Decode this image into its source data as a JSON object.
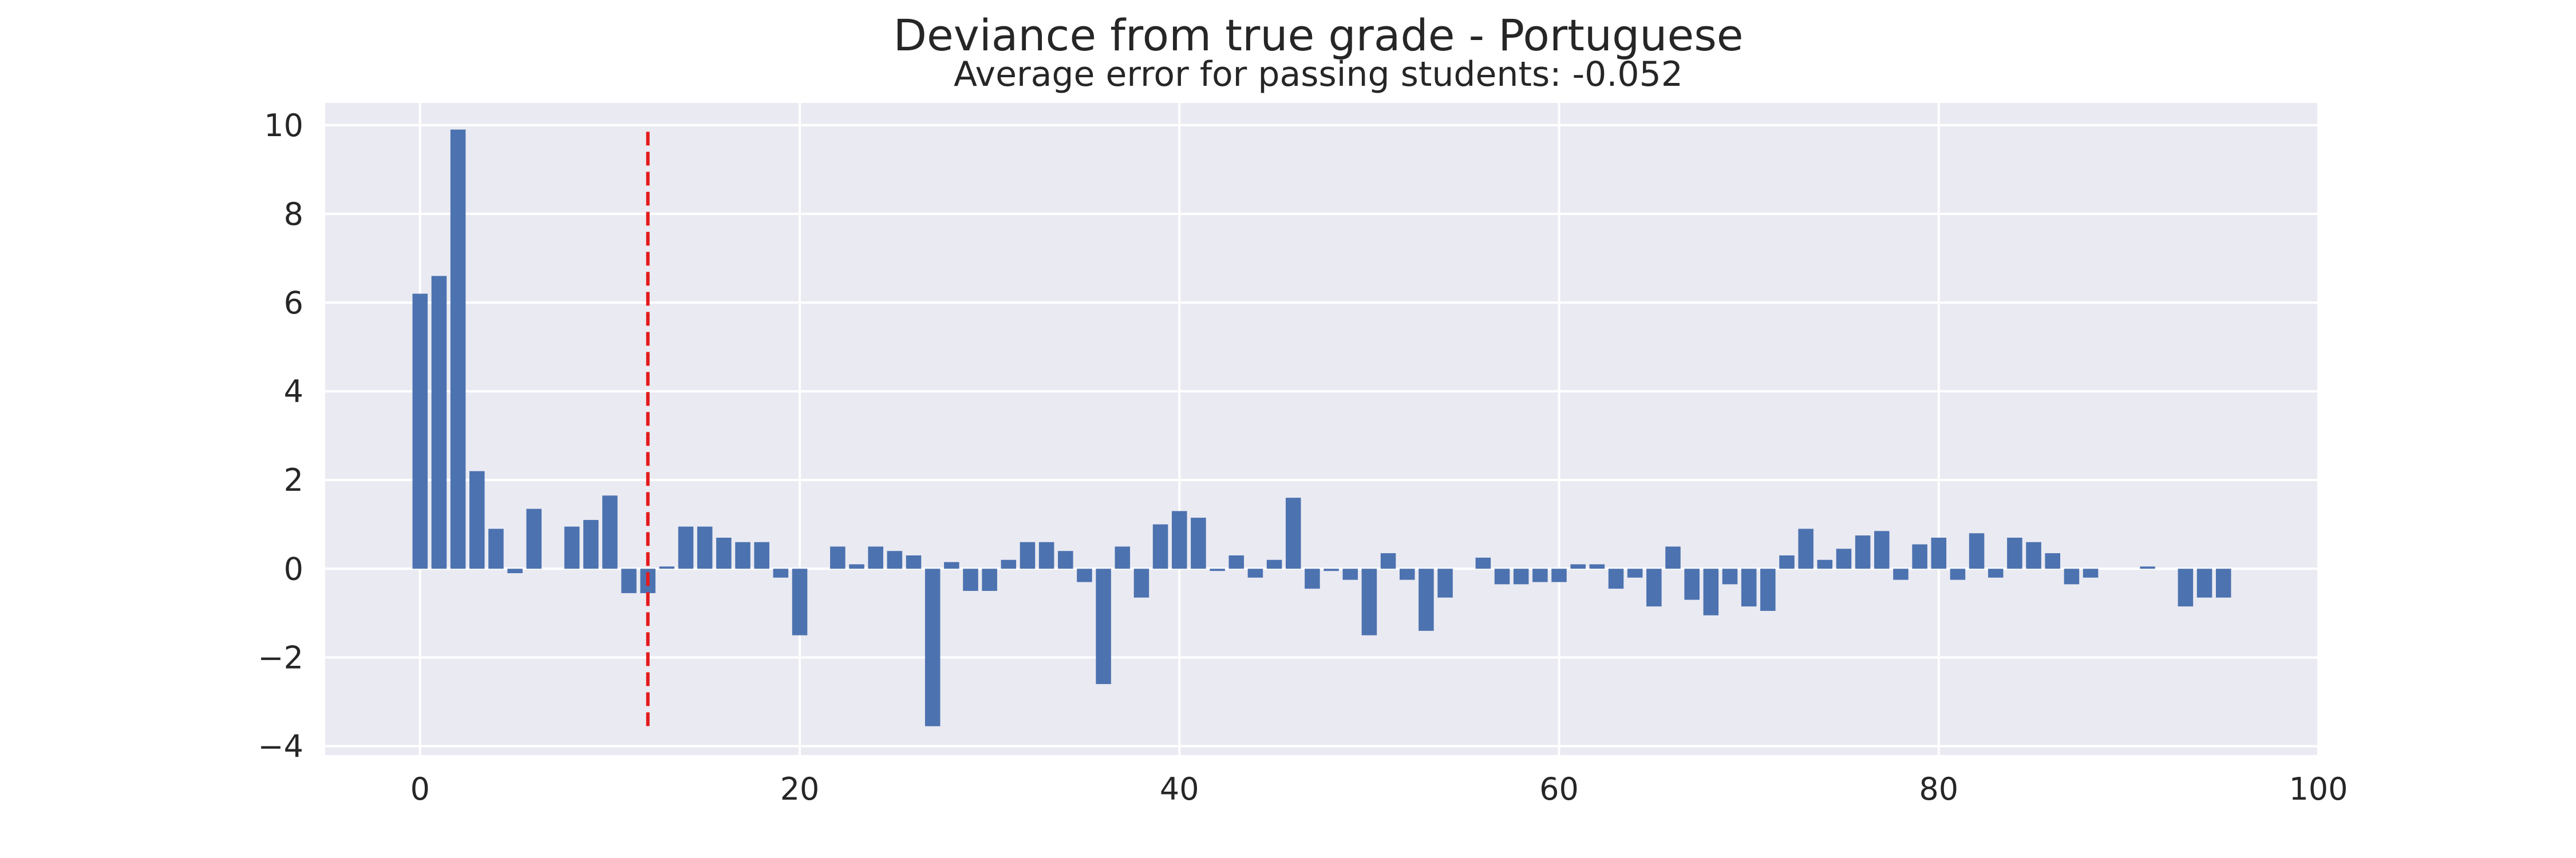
{
  "chart_data": {
    "type": "bar",
    "title": "Deviance from true grade - Portuguese",
    "subtitle": "Average error for passing students: -0.052",
    "xlabel": "",
    "ylabel": "",
    "xlim": [
      -5,
      100
    ],
    "ylim": [
      -4.2,
      10.5
    ],
    "x_ticks": [
      0,
      20,
      40,
      60,
      80,
      100
    ],
    "y_ticks": [
      -4,
      -2,
      0,
      2,
      4,
      6,
      8,
      10
    ],
    "x_tick_labels": [
      "0",
      "20",
      "40",
      "60",
      "80",
      "100"
    ],
    "y_tick_labels": [
      "−4",
      "−2",
      "0",
      "2",
      "4",
      "6",
      "8",
      "10"
    ],
    "grid": true,
    "bar_color": "#4c72b0",
    "x": [
      0,
      1,
      2,
      3,
      4,
      5,
      6,
      7,
      8,
      9,
      10,
      11,
      12,
      13,
      14,
      15,
      16,
      17,
      18,
      19,
      20,
      21,
      22,
      23,
      24,
      25,
      26,
      27,
      28,
      29,
      30,
      31,
      32,
      33,
      34,
      35,
      36,
      37,
      38,
      39,
      40,
      41,
      42,
      43,
      44,
      45,
      46,
      47,
      48,
      49,
      50,
      51,
      52,
      53,
      54,
      55,
      56,
      57,
      58,
      59,
      60,
      61,
      62,
      63,
      64,
      65,
      66,
      67,
      68,
      69,
      70,
      71,
      72,
      73,
      74,
      75,
      76,
      77,
      78,
      79,
      80,
      81,
      82,
      83,
      84,
      85,
      86,
      87,
      88,
      89,
      90,
      91,
      92,
      93,
      94,
      95
    ],
    "values": [
      6.2,
      6.6,
      9.9,
      2.2,
      0.9,
      -0.1,
      1.35,
      0,
      0.95,
      1.1,
      1.65,
      -0.55,
      -0.55,
      0.05,
      0.95,
      0.95,
      0.7,
      0.6,
      0.6,
      -0.2,
      -1.5,
      0,
      0.5,
      0.1,
      0.5,
      0.4,
      0.3,
      -3.55,
      0.15,
      -0.5,
      -0.5,
      0.2,
      0.6,
      0.6,
      0.4,
      -0.3,
      -2.6,
      0.5,
      -0.65,
      1.0,
      1.3,
      1.15,
      -0.05,
      0.3,
      -0.2,
      0.2,
      1.6,
      -0.45,
      -0.05,
      -0.25,
      -1.5,
      0.35,
      -0.25,
      -1.4,
      -0.65,
      0,
      0.25,
      -0.35,
      -0.35,
      -0.3,
      -0.3,
      0.1,
      0.1,
      -0.45,
      -0.2,
      -0.85,
      0.5,
      -0.7,
      -1.05,
      -0.35,
      -0.85,
      -0.95,
      0.3,
      0.9,
      0.2,
      0.45,
      0.75,
      0.85,
      -0.25,
      0.55,
      0.7,
      -0.25,
      0.8,
      -0.2,
      0.7,
      0.6,
      0.35,
      -0.35,
      -0.2,
      0,
      0,
      0.05,
      0,
      -0.85,
      -0.65,
      -0.65
    ],
    "threshold_line": {
      "x": 12,
      "y_range": [
        -3.6,
        9.85
      ],
      "color": "#e41a1c"
    }
  }
}
